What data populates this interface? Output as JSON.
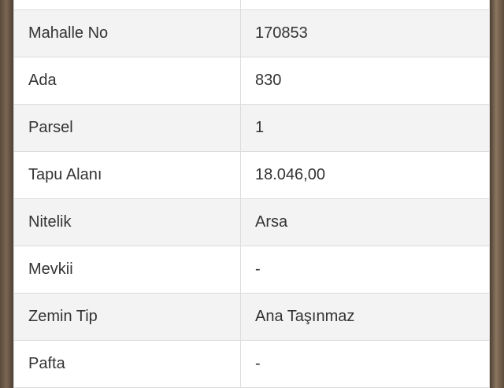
{
  "rows": [
    {
      "label": "",
      "value": ""
    },
    {
      "label": "Mahalle No",
      "value": "170853"
    },
    {
      "label": "Ada",
      "value": "830"
    },
    {
      "label": "Parsel",
      "value": "1"
    },
    {
      "label": "Tapu Alanı",
      "value": "18.046,00"
    },
    {
      "label": "Nitelik",
      "value": "Arsa"
    },
    {
      "label": "Mevkii",
      "value": "-"
    },
    {
      "label": "Zemin Tip",
      "value": "Ana Taşınmaz"
    },
    {
      "label": "Pafta",
      "value": "-"
    }
  ]
}
